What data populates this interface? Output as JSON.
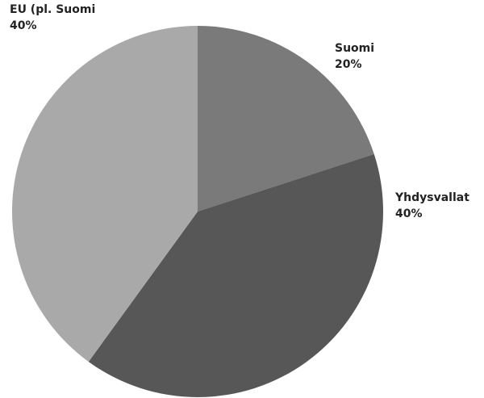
{
  "chart_data": {
    "type": "pie",
    "categories": [
      "Suomi",
      "Yhdysvallat",
      "EU (pl. Suomi"
    ],
    "values": [
      20,
      40,
      40
    ],
    "value_labels": [
      "20%",
      "40%",
      "40%"
    ],
    "colors": [
      "#7a7a7a",
      "#575757",
      "#a9a9a9"
    ]
  }
}
